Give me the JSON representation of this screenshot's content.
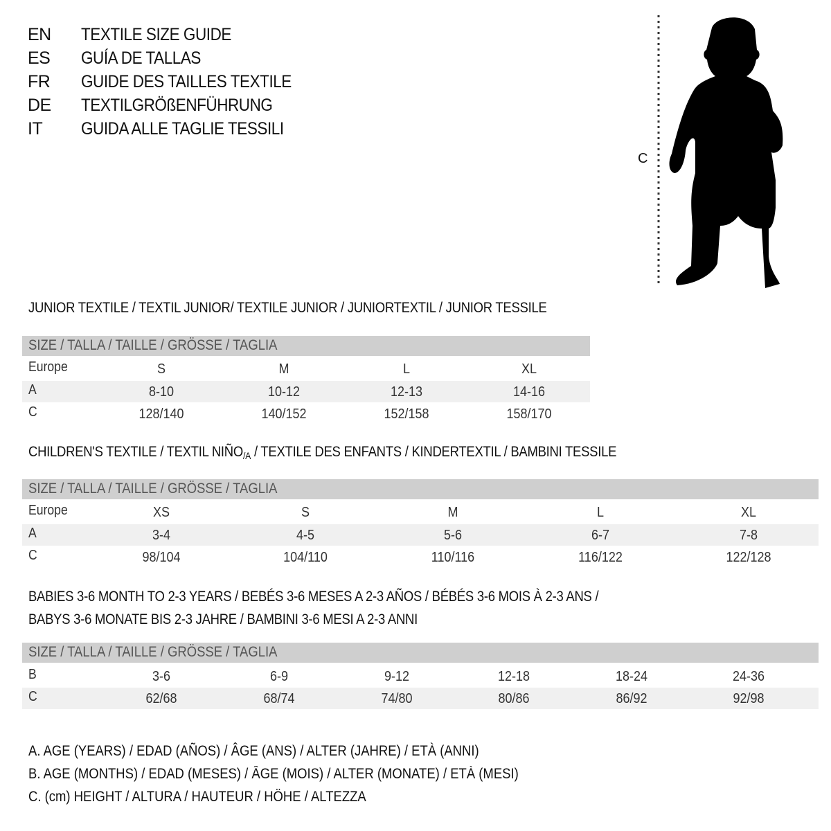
{
  "languages": [
    {
      "code": "EN",
      "title": "TEXTILE SIZE GUIDE"
    },
    {
      "code": "ES",
      "title": "GUÍA DE TALLAS"
    },
    {
      "code": "FR",
      "title": "GUIDE DES TAILLES TEXTILE"
    },
    {
      "code": "DE",
      "title": "TEXTILGRÖßENFÜHRUNG"
    },
    {
      "code": "IT",
      "title": "GUIDA ALLE TAGLIE TESSILI"
    }
  ],
  "figure": {
    "measure_label": "C",
    "icon": "child-silhouette"
  },
  "junior": {
    "title": "JUNIOR TEXTILE / TEXTIL JUNIOR/ TEXTILE JUNIOR / JUNIORTEXTIL / JUNIOR TESSILE",
    "header": "SIZE / TALLA / TAILLE / GRÖSSE / TAGLIA",
    "rows": [
      {
        "label": "Europe",
        "cells": [
          "S",
          "M",
          "L",
          "XL"
        ]
      },
      {
        "label": "A",
        "cells": [
          "8-10",
          "10-12",
          "12-13",
          "14-16"
        ]
      },
      {
        "label": "C",
        "cells": [
          "128/140",
          "140/152",
          "152/158",
          "158/170"
        ]
      }
    ]
  },
  "children": {
    "title_main": "CHILDREN'S TEXTILE / TEXTIL NIÑO",
    "title_sub": "/A",
    "title_rest": " / TEXTILE DES ENFANTS / KINDERTEXTIL / BAMBINI TESSILE",
    "header": "SIZE / TALLA / TAILLE / GRÖSSE / TAGLIA",
    "rows": [
      {
        "label": "Europe",
        "cells": [
          "XS",
          "S",
          "M",
          "L",
          "XL"
        ]
      },
      {
        "label": "A",
        "cells": [
          "3-4",
          "4-5",
          "5-6",
          "6-7",
          "7-8"
        ]
      },
      {
        "label": "C",
        "cells": [
          "98/104",
          "104/110",
          "110/116",
          "116/122",
          "122/128"
        ]
      }
    ]
  },
  "babies": {
    "title_line1": "BABIES 3-6 MONTH TO 2-3 YEARS / BEBÉS 3-6 MESES A 2-3 AÑOS / BÉBÉS 3-6 MOIS À 2-3 ANS /",
    "title_line2": "BABYS 3-6 MONATE BIS 2-3 JAHRE / BAMBINI 3-6 MESI A 2-3 ANNI",
    "header": "SIZE / TALLA / TAILLE / GRÖSSE / TAGLIA",
    "rows": [
      {
        "label": "B",
        "cells": [
          "3-6",
          "6-9",
          "9-12",
          "12-18",
          "18-24",
          "24-36"
        ]
      },
      {
        "label": "C",
        "cells": [
          "62/68",
          "68/74",
          "74/80",
          "80/86",
          "86/92",
          "92/98"
        ]
      }
    ]
  },
  "legend": [
    "A. AGE (YEARS) / EDAD (AÑOS) / ÂGE (ANS) / ALTER (JAHRE) / ETÀ (ANNI)",
    "B. AGE (MONTHS) / EDAD (MESES) / ÂGE (MOIS) / ALTER (MONATE) / ETÀ (MESI)",
    "C. (cm) HEIGHT / ALTURA / HAUTEUR / HÖHE / ALTEZZA"
  ]
}
